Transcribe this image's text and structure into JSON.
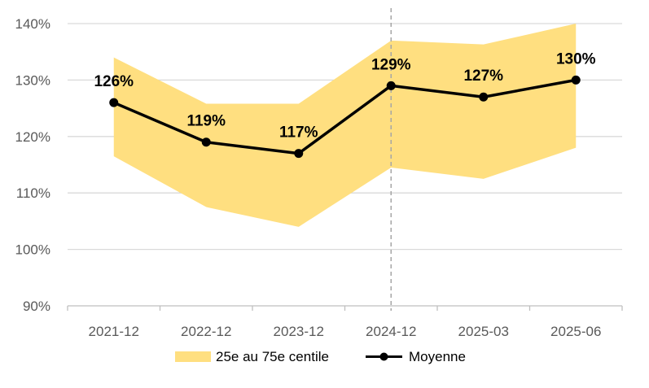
{
  "chart_data": {
    "type": "line",
    "title": "",
    "xlabel": "",
    "ylabel": "",
    "categories": [
      "2021-12",
      "2022-12",
      "2023-12",
      "2024-12",
      "2025-03",
      "2025-06"
    ],
    "ylim": [
      90,
      140
    ],
    "yticks": [
      90,
      100,
      110,
      120,
      130,
      140
    ],
    "ytick_labels": [
      "90%",
      "100%",
      "110%",
      "120%",
      "130%",
      "140%"
    ],
    "grid": true,
    "vertical_marker": {
      "category": "2024-12",
      "style": "dashed",
      "color": "#a6a6a6"
    },
    "band": {
      "name": "25e au 75e centile",
      "color": "#ffdf80",
      "lower": [
        116.5,
        107.5,
        104,
        114.5,
        112.5,
        118
      ],
      "upper": [
        134,
        125.8,
        125.8,
        137,
        136.3,
        140
      ]
    },
    "series": [
      {
        "name": "Moyenne",
        "color": "#000000",
        "values": [
          126,
          119,
          117,
          129,
          127,
          130
        ],
        "labels": [
          "126%",
          "119%",
          "117%",
          "129%",
          "127%",
          "130%"
        ]
      }
    ],
    "legend": {
      "placement": "bottom",
      "entries": [
        "25e au 75e centile",
        "Moyenne"
      ]
    }
  }
}
